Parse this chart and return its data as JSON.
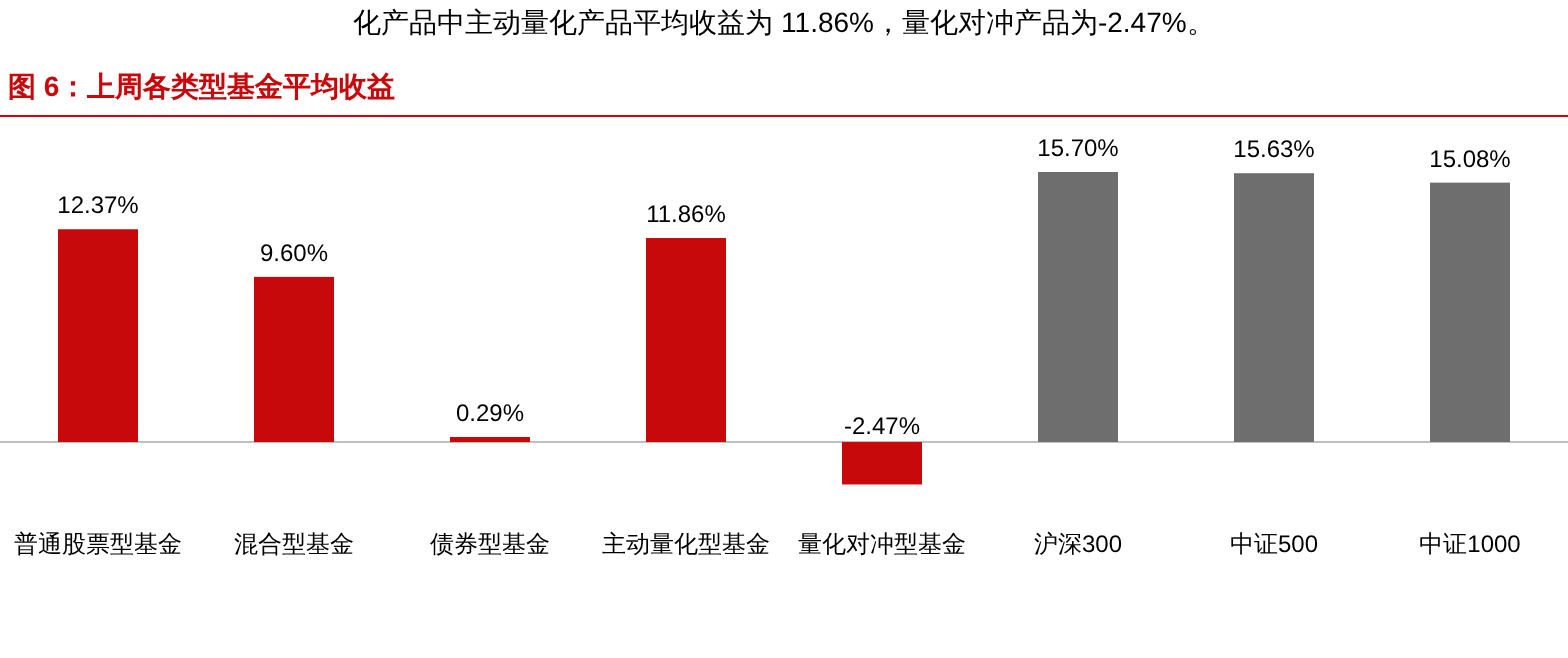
{
  "chart_data": {
    "type": "bar",
    "title": "图 6：上周各类型基金平均收益",
    "categories": [
      "普通股票型基金",
      "混合型基金",
      "债券型基金",
      "主动量化型基金",
      "量化对冲型基金",
      "沪深300",
      "中证500",
      "中证1000"
    ],
    "values": [
      12.37,
      9.6,
      0.29,
      11.86,
      -2.47,
      15.7,
      15.63,
      15.08
    ],
    "value_labels": [
      "12.37%",
      "9.60%",
      "0.29%",
      "11.86%",
      "-2.47%",
      "15.70%",
      "15.63%",
      "15.08%"
    ],
    "colors": [
      "#c8090b",
      "#c8090b",
      "#c8090b",
      "#c8090b",
      "#c8090b",
      "#6e6e6e",
      "#6e6e6e",
      "#6e6e6e"
    ],
    "annotations": [
      "化产品中主动量化产品平均收益为 11.86%，量化对冲产品为-2.47%。"
    ]
  }
}
